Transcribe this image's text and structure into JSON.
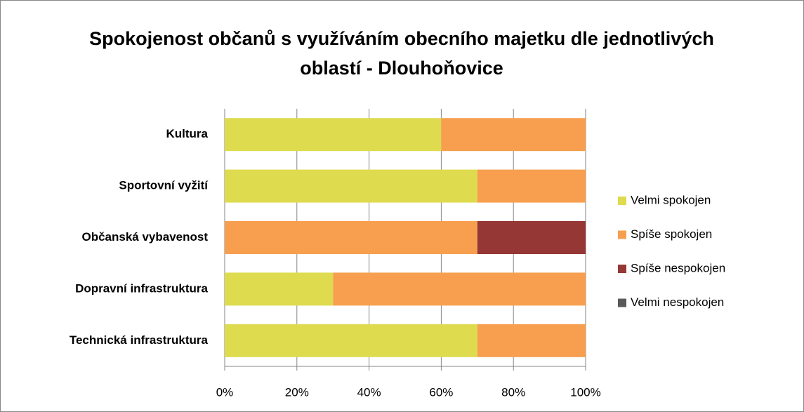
{
  "chart_data": {
    "type": "stacked_bar_horizontal",
    "title": "Spokojenost občanů s využíváním obecního majetku dle jednotlivých oblastí - Dlouhoňovice",
    "categories": [
      "Kultura",
      "Sportovní vyžití",
      "Občanská vybavenost",
      "Dopravní infrastruktura",
      "Technická infrastruktura"
    ],
    "series": [
      {
        "name": "Velmi spokojen",
        "color": "#dedb4f",
        "values": [
          60,
          70,
          0,
          30,
          70
        ]
      },
      {
        "name": "Spíše spokojen",
        "color": "#f79f4f",
        "values": [
          40,
          30,
          70,
          70,
          30
        ]
      },
      {
        "name": "Spíše nespokojen",
        "color": "#953735",
        "values": [
          0,
          0,
          30,
          0,
          0
        ]
      },
      {
        "name": "Velmi nespokojen",
        "color": "#595959",
        "values": [
          0,
          0,
          0,
          0,
          0
        ]
      }
    ],
    "xlim": [
      0,
      100
    ],
    "xticks": [
      {
        "value": 0,
        "label": "0%"
      },
      {
        "value": 20,
        "label": "20%"
      },
      {
        "value": 40,
        "label": "40%"
      },
      {
        "value": 60,
        "label": "60%"
      },
      {
        "value": 80,
        "label": "80%"
      },
      {
        "value": 100,
        "label": "100%"
      }
    ],
    "grid": true,
    "legend": "right"
  }
}
